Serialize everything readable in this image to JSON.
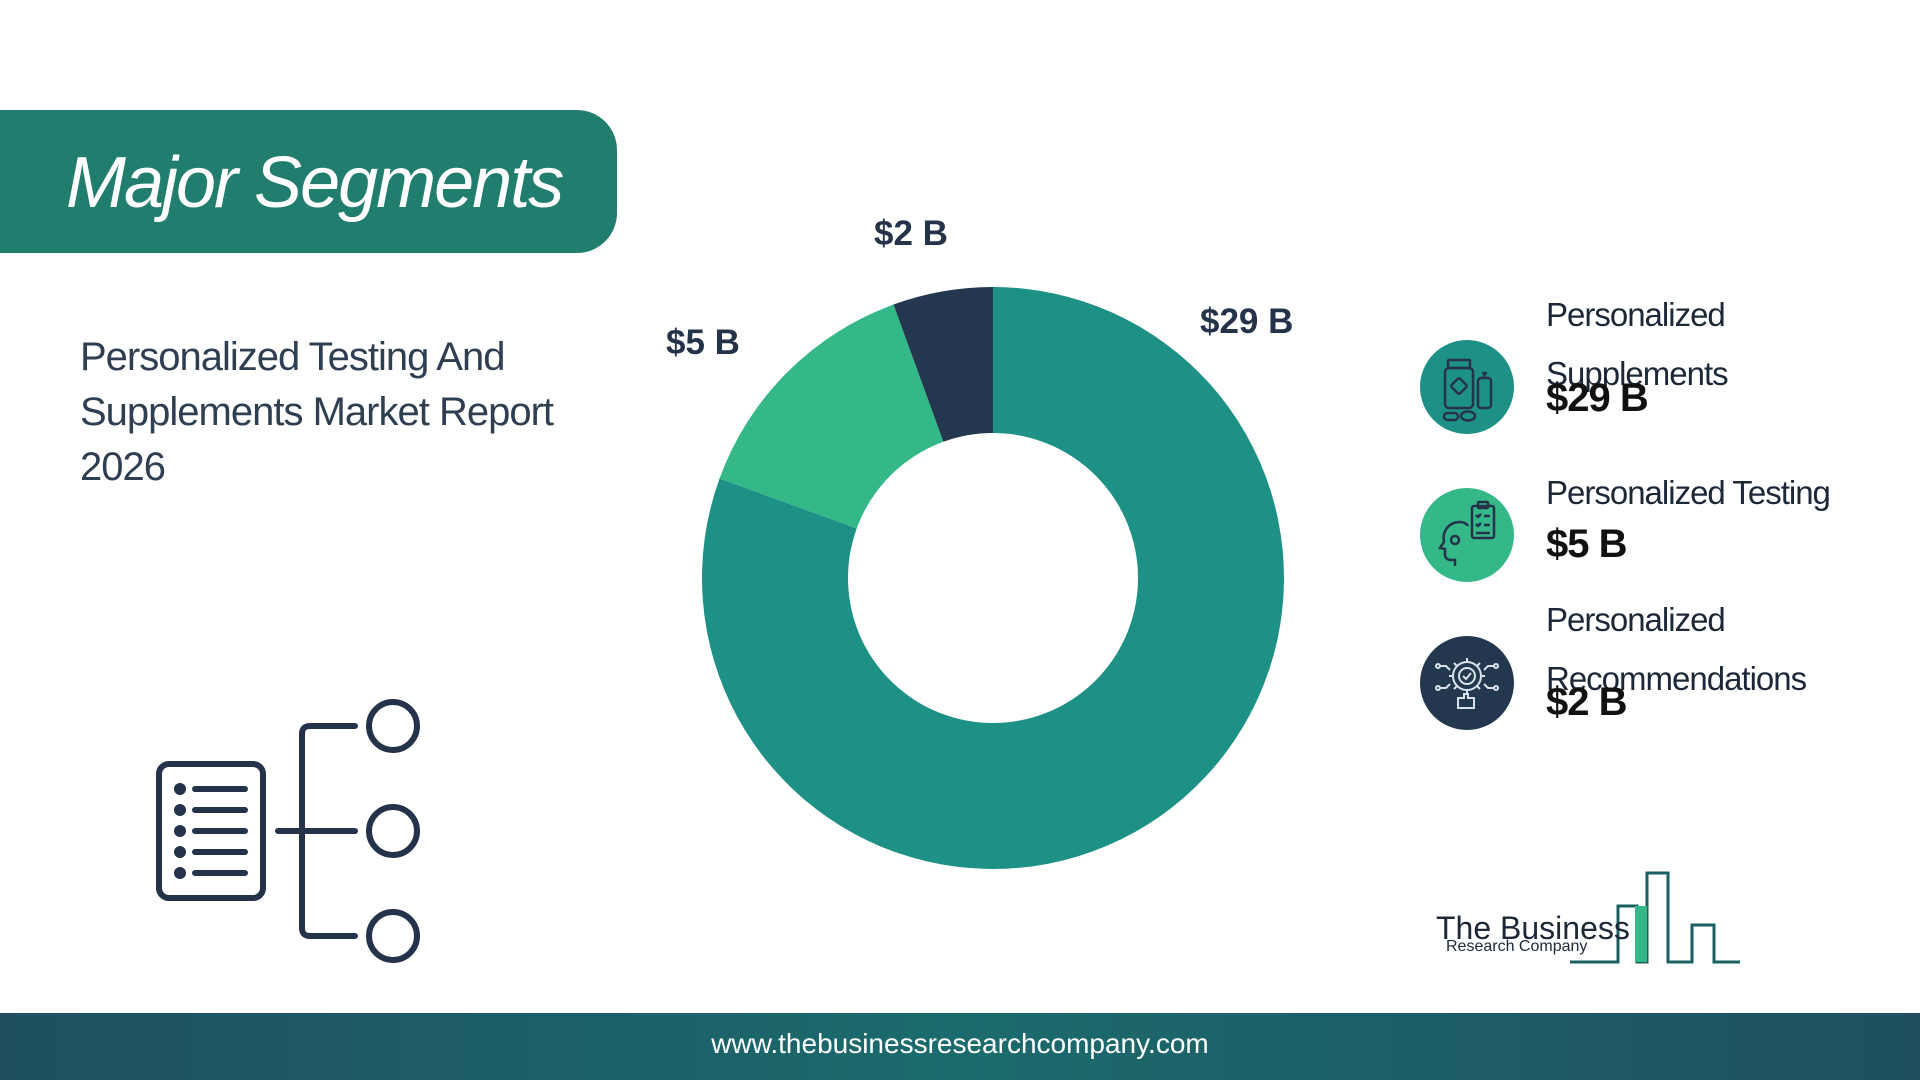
{
  "header": {
    "title": "Major Segments"
  },
  "report_title": "Personalized Testing And Supplements Market Report 2026",
  "colors": {
    "banner": "#217d6e",
    "supplements": "#1d9186",
    "testing": "#34b888",
    "recommendations": "#23384e",
    "icon_stroke": "#25334a"
  },
  "chart_data": {
    "type": "pie",
    "donut": true,
    "categories": [
      "Personalized Supplements",
      "Personalized Testing",
      "Personalized Recommendations"
    ],
    "values": [
      29,
      5,
      2
    ],
    "data_labels": [
      "$29 B",
      "$5 B",
      "$2 B"
    ],
    "unit": "$ B",
    "start_angle_deg": 0,
    "direction": "clockwise",
    "legend_position": "right",
    "title": ""
  },
  "legend": {
    "items": [
      {
        "label": "Personalized Supplements",
        "value": "$29 B",
        "icon": "supplement-bottles-icon"
      },
      {
        "label": "Personalized Testing",
        "value": "$5 B",
        "icon": "head-clipboard-icon"
      },
      {
        "label": "Personalized Recommendations",
        "value": "$2 B",
        "icon": "gear-check-icon"
      }
    ]
  },
  "decorative_icon": "segment-list-tree-icon",
  "logo": {
    "line1": "The Business",
    "line2": "Research Company"
  },
  "footer": {
    "url": "www.thebusinessresearchcompany.com"
  }
}
